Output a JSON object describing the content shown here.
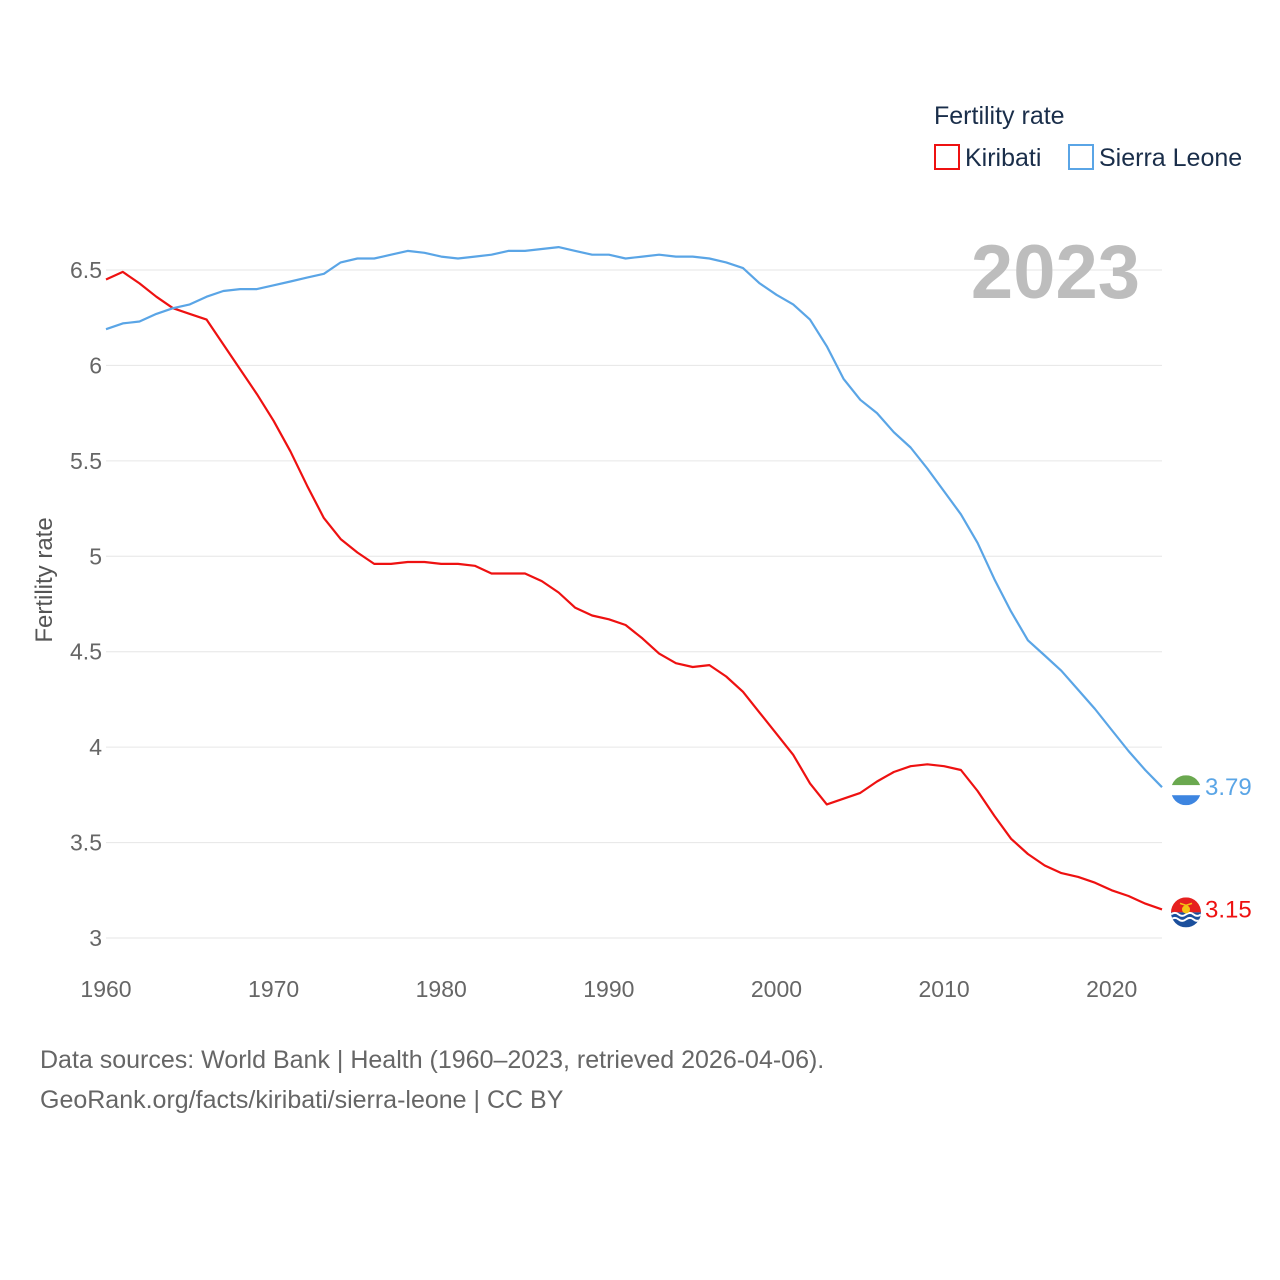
{
  "chart_data": {
    "type": "line",
    "title": "Fertility rate",
    "ylabel": "Fertility rate",
    "xlabel": "",
    "year_label": "2023",
    "xlim": [
      1960,
      2023
    ],
    "ylim": [
      3,
      6.5
    ],
    "x_ticks": [
      1960,
      1970,
      1980,
      1990,
      2000,
      2010,
      2020
    ],
    "y_ticks": [
      3,
      3.5,
      4,
      4.5,
      5,
      5.5,
      6,
      6.5
    ],
    "y_tick_labels": [
      "3",
      "3.5",
      "4",
      "4.5",
      "5",
      "5.5",
      "6",
      "6.5"
    ],
    "x_tick_labels": [
      "1960",
      "1970",
      "1980",
      "1990",
      "2000",
      "2010",
      "2020"
    ],
    "legend": {
      "title": "Fertility rate",
      "placement": "top-right"
    },
    "series": [
      {
        "name": "Kiribati",
        "color": "#ee1111",
        "end_label": "3.15",
        "flag_icon": "kiribati-flag-icon",
        "x": [
          1960,
          1961,
          1962,
          1963,
          1964,
          1965,
          1966,
          1967,
          1968,
          1969,
          1970,
          1971,
          1972,
          1973,
          1974,
          1975,
          1976,
          1977,
          1978,
          1979,
          1980,
          1981,
          1982,
          1983,
          1984,
          1985,
          1986,
          1987,
          1988,
          1989,
          1990,
          1991,
          1992,
          1993,
          1994,
          1995,
          1996,
          1997,
          1998,
          1999,
          2000,
          2001,
          2002,
          2003,
          2004,
          2005,
          2006,
          2007,
          2008,
          2009,
          2010,
          2011,
          2012,
          2013,
          2014,
          2015,
          2016,
          2017,
          2018,
          2019,
          2020,
          2021,
          2022,
          2023
        ],
        "values": [
          6.45,
          6.49,
          6.43,
          6.36,
          6.3,
          6.27,
          6.24,
          6.11,
          5.98,
          5.85,
          5.71,
          5.55,
          5.37,
          5.2,
          5.09,
          5.02,
          4.96,
          4.96,
          4.97,
          4.97,
          4.96,
          4.96,
          4.95,
          4.91,
          4.91,
          4.91,
          4.87,
          4.81,
          4.73,
          4.69,
          4.67,
          4.64,
          4.57,
          4.49,
          4.44,
          4.42,
          4.43,
          4.37,
          4.29,
          4.18,
          4.07,
          3.96,
          3.81,
          3.7,
          3.73,
          3.76,
          3.82,
          3.87,
          3.9,
          3.91,
          3.9,
          3.88,
          3.77,
          3.64,
          3.52,
          3.44,
          3.38,
          3.34,
          3.32,
          3.29,
          3.25,
          3.22,
          3.18,
          3.15
        ]
      },
      {
        "name": "Sierra Leone",
        "color": "#5aa5e6",
        "end_label": "3.79",
        "flag_icon": "sierra-leone-flag-icon",
        "x": [
          1960,
          1961,
          1962,
          1963,
          1964,
          1965,
          1966,
          1967,
          1968,
          1969,
          1970,
          1971,
          1972,
          1973,
          1974,
          1975,
          1976,
          1977,
          1978,
          1979,
          1980,
          1981,
          1982,
          1983,
          1984,
          1985,
          1986,
          1987,
          1988,
          1989,
          1990,
          1991,
          1992,
          1993,
          1994,
          1995,
          1996,
          1997,
          1998,
          1999,
          2000,
          2001,
          2002,
          2003,
          2004,
          2005,
          2006,
          2007,
          2008,
          2009,
          2010,
          2011,
          2012,
          2013,
          2014,
          2015,
          2016,
          2017,
          2018,
          2019,
          2020,
          2021,
          2022,
          2023
        ],
        "values": [
          6.19,
          6.22,
          6.23,
          6.27,
          6.3,
          6.32,
          6.36,
          6.39,
          6.4,
          6.4,
          6.42,
          6.44,
          6.46,
          6.48,
          6.54,
          6.56,
          6.56,
          6.58,
          6.6,
          6.59,
          6.57,
          6.56,
          6.57,
          6.58,
          6.6,
          6.6,
          6.61,
          6.62,
          6.6,
          6.58,
          6.58,
          6.56,
          6.57,
          6.58,
          6.57,
          6.57,
          6.56,
          6.54,
          6.51,
          6.43,
          6.37,
          6.32,
          6.24,
          6.1,
          5.93,
          5.82,
          5.75,
          5.65,
          5.57,
          5.46,
          5.34,
          5.22,
          5.07,
          4.88,
          4.71,
          4.56,
          4.48,
          4.4,
          4.3,
          4.2,
          4.09,
          3.98,
          3.88,
          3.79
        ]
      }
    ]
  },
  "footer": {
    "line1": "Data sources: World Bank | Health (1960–2023, retrieved 2026-04-06).",
    "line2": "GeoRank.org/facts/kiribati/sierra-leone | CC BY"
  }
}
